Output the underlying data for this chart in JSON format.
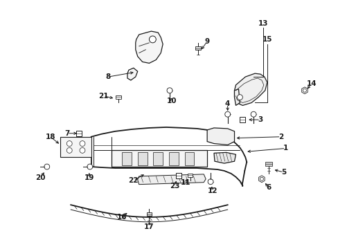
{
  "background_color": "#ffffff",
  "line_color": "#1a1a1a",
  "text_color": "#1a1a1a",
  "fig_width": 4.89,
  "fig_height": 3.6,
  "dpi": 100
}
